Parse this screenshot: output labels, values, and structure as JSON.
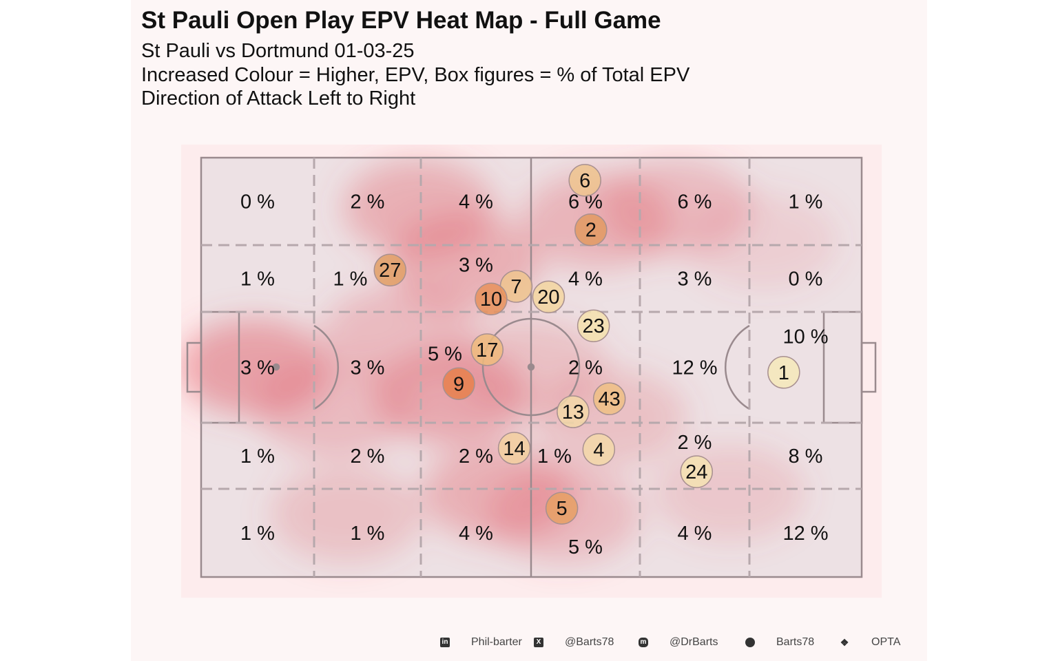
{
  "title": "St Pauli Open Play EPV Heat Map - Full Game",
  "subtitle_lines": [
    "St Pauli vs Dortmund 01-03-25",
    "Increased Colour = Higher, EPV, Box figures = % of Total EPV",
    "Direction of Attack Left to Right"
  ],
  "footer": {
    "linkedin": "Phil-barter",
    "x": "@Barts78",
    "mastodon": "@DrBarts",
    "github": "Barts78",
    "source": "OPTA"
  },
  "chart_data": {
    "type": "heatmap",
    "title": "St Pauli Open Play EPV Heat Map - Full Game",
    "attack_direction": "left-to-right",
    "zone_percentages": [
      [
        "0 %",
        "2 %",
        "4 %",
        "6 %",
        "6 %",
        "1 %"
      ],
      [
        "1 %",
        "1 %",
        "3 %",
        "4 %",
        "3 %",
        "0 %"
      ],
      [
        "3 %",
        "3 %",
        "5 %",
        "2 %",
        "12 %",
        "10 %"
      ],
      [
        "1 %",
        "2 %",
        "2 %",
        "1 %",
        "2 %",
        "8 %"
      ],
      [
        "1 %",
        "1 %",
        "4 %",
        "5 %",
        "4 %",
        "12 %"
      ]
    ],
    "players": [
      {
        "label": "6",
        "x": 58.1,
        "y": 5.4,
        "colour": "#efc48e"
      },
      {
        "label": "2",
        "x": 59.0,
        "y": 17.2,
        "colour": "#e29a62"
      },
      {
        "label": "27",
        "x": 28.6,
        "y": 26.8,
        "colour": "#e2a066"
      },
      {
        "label": "7",
        "x": 47.7,
        "y": 30.7,
        "colour": "#efc48e"
      },
      {
        "label": "10",
        "x": 43.9,
        "y": 33.7,
        "colour": "#e8925c"
      },
      {
        "label": "20",
        "x": 52.6,
        "y": 33.2,
        "colour": "#f3d6a0"
      },
      {
        "label": "23",
        "x": 59.4,
        "y": 40.1,
        "colour": "#f5e2ae"
      },
      {
        "label": "17",
        "x": 43.3,
        "y": 45.8,
        "colour": "#efbb7c"
      },
      {
        "label": "9",
        "x": 39.0,
        "y": 53.9,
        "colour": "#e6804c"
      },
      {
        "label": "43",
        "x": 61.8,
        "y": 57.5,
        "colour": "#efc084"
      },
      {
        "label": "13",
        "x": 56.3,
        "y": 60.6,
        "colour": "#f3d8a8"
      },
      {
        "label": "14",
        "x": 47.4,
        "y": 69.3,
        "colour": "#f3d0a0"
      },
      {
        "label": "4",
        "x": 60.2,
        "y": 69.6,
        "colour": "#f3d8a8"
      },
      {
        "label": "24",
        "x": 75.0,
        "y": 74.9,
        "colour": "#f5e2b2"
      },
      {
        "label": "5",
        "x": 54.6,
        "y": 83.6,
        "colour": "#e6a064"
      },
      {
        "label": "1",
        "x": 88.2,
        "y": 51.2,
        "colour": "#f5e8ba"
      }
    ],
    "density_hotspots": [
      {
        "x": 8,
        "y": 50,
        "w": 1.0
      },
      {
        "x": 33,
        "y": 12,
        "w": 0.8
      },
      {
        "x": 40,
        "y": 25,
        "w": 0.8
      },
      {
        "x": 38,
        "y": 57,
        "w": 0.9
      },
      {
        "x": 45,
        "y": 80,
        "w": 0.8
      },
      {
        "x": 30,
        "y": 42,
        "w": 0.6
      },
      {
        "x": 60,
        "y": 15,
        "w": 0.7
      },
      {
        "x": 72,
        "y": 12,
        "w": 0.6
      },
      {
        "x": 55,
        "y": 85,
        "w": 0.6
      },
      {
        "x": 20,
        "y": 60,
        "w": 0.6
      },
      {
        "x": 22,
        "y": 85,
        "w": 0.5
      },
      {
        "x": 62,
        "y": 62,
        "w": 0.5
      },
      {
        "x": 80,
        "y": 80,
        "w": 0.4
      },
      {
        "x": 50,
        "y": 50,
        "w": 0.5
      },
      {
        "x": 85,
        "y": 20,
        "w": 0.3
      }
    ]
  }
}
